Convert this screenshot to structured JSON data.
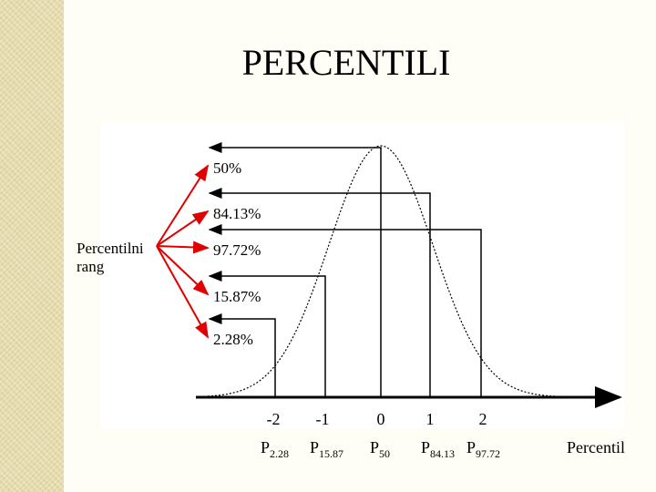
{
  "title": "PERCENTILI",
  "rank_label": [
    "Percentilni",
    "rang"
  ],
  "percent_labels": [
    "50%",
    "84.13%",
    "97.72%",
    "15.87%",
    "2.28%"
  ],
  "z_labels": [
    "-2",
    "-1",
    "0",
    "1",
    "2"
  ],
  "percentiles": [
    {
      "base": "P",
      "sub": "2.28"
    },
    {
      "base": "P",
      "sub": "15.87"
    },
    {
      "base": "P",
      "sub": "50"
    },
    {
      "base": "P",
      "sub": "84.13"
    },
    {
      "base": "P",
      "sub": "97.72"
    }
  ],
  "axis_label": "Percentil"
}
